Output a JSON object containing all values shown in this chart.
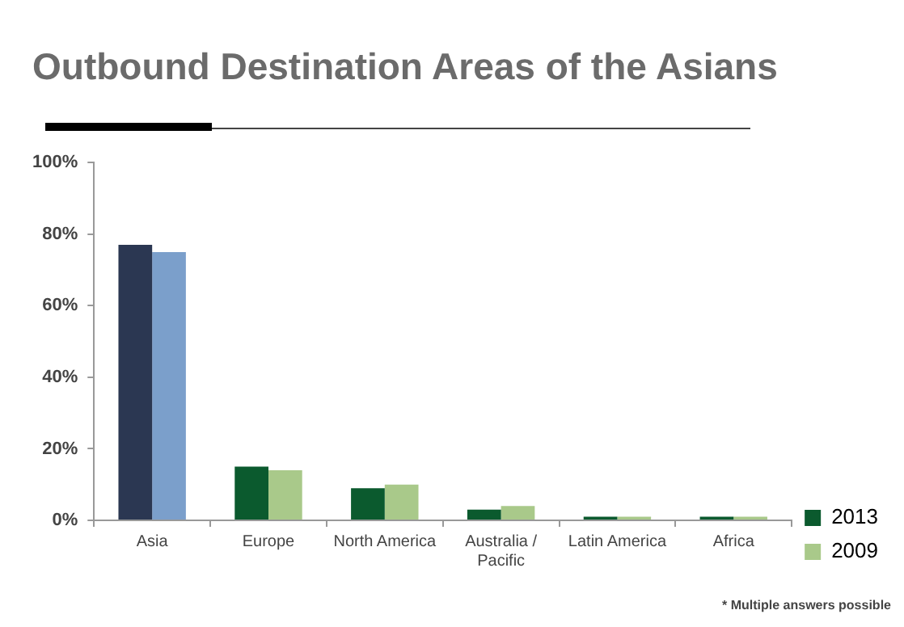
{
  "chart_data": {
    "type": "bar",
    "title": "Outbound Destination Areas of the Asians",
    "categories": [
      "Asia",
      "Europe",
      "North America",
      "Australia / Pacific",
      "Latin America",
      "Africa"
    ],
    "series": [
      {
        "name": "2013",
        "color": "#0b5a2e",
        "colors": [
          "#2b3752",
          "#0b5a2e",
          "#0b5a2e",
          "#0b5a2e",
          "#0b5a2e",
          "#0b5a2e"
        ],
        "values": [
          77,
          15,
          9,
          3,
          1,
          1
        ]
      },
      {
        "name": "2009",
        "color": "#a9c98a",
        "colors": [
          "#7b9fcb",
          "#a9c98a",
          "#a9c98a",
          "#a9c98a",
          "#a9c98a",
          "#a9c98a"
        ],
        "values": [
          75,
          14,
          10,
          4,
          1,
          1
        ]
      }
    ],
    "ylim": [
      0,
      100
    ],
    "yticks": [
      {
        "value": 0,
        "label": "0%"
      },
      {
        "value": 20,
        "label": "20%"
      },
      {
        "value": 40,
        "label": "40%"
      },
      {
        "value": 60,
        "label": "60%"
      },
      {
        "value": 80,
        "label": "80%"
      },
      {
        "value": 100,
        "label": "100%"
      }
    ],
    "grid": false,
    "legend": "bottom right",
    "annotations": [
      "* Multiple answers possible"
    ]
  }
}
